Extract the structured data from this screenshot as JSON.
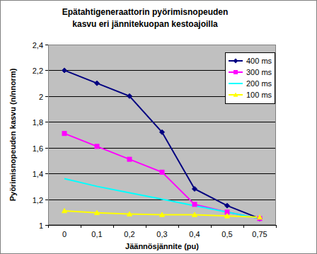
{
  "chart_data": {
    "type": "line",
    "title": "Epätahtigeneraattorin pyörimisnopeuden kasvu eri jännitekuopan kestoajoilla",
    "x_label": "Jäännösjännite (pu)",
    "y_label": "Pyörimisnopeuden kasvu (n/nnorm)",
    "categories": [
      "0",
      "0,1",
      "0,2",
      "0,3",
      "0,4",
      "0,5",
      "0,75"
    ],
    "series": [
      {
        "name": "400 ms",
        "color": "#000080",
        "marker": "diamond",
        "values": [
          2.2,
          2.1,
          2.0,
          1.72,
          1.28,
          1.15,
          1.05
        ]
      },
      {
        "name": "300 ms",
        "color": "#ff00ff",
        "marker": "square",
        "values": [
          1.71,
          1.61,
          1.51,
          1.41,
          1.16,
          1.1,
          1.05
        ]
      },
      {
        "name": "200 ms",
        "color": "#00ffff",
        "marker": "none",
        "values": [
          1.36,
          1.3,
          1.25,
          1.2,
          1.15,
          1.1,
          1.05
        ]
      },
      {
        "name": "100 ms",
        "color": "#ffff00",
        "marker": "triangle",
        "values": [
          1.11,
          1.095,
          1.085,
          1.08,
          1.08,
          1.07,
          1.06
        ]
      }
    ],
    "ylim": [
      1,
      2.4
    ],
    "yticks": [
      1,
      {
        "value": 1.2,
        "label": "1,2"
      },
      {
        "value": 1.4,
        "label": "1,4"
      },
      {
        "value": 1.6,
        "label": "1,6"
      },
      {
        "value": 1.8,
        "label": "1,8"
      },
      2,
      {
        "value": 2.2,
        "label": "2,2"
      },
      {
        "value": 2.4,
        "label": "2,4"
      }
    ],
    "grid": true,
    "legend": "top-right"
  }
}
